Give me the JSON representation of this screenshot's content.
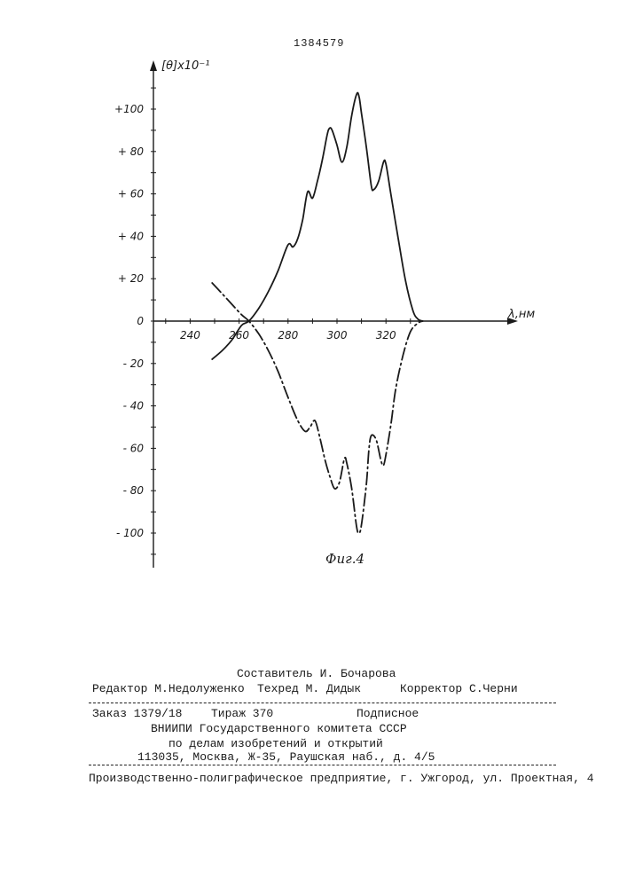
{
  "header": {
    "patent_number": "1384579"
  },
  "chart_data": {
    "type": "line",
    "figure_label": "Фиг.4",
    "ylabel": "[θ]x10⁻¹",
    "xlabel": "λ,нм",
    "xlim": [
      225,
      335
    ],
    "ylim": [
      -115,
      115
    ],
    "x_ticks": [
      {
        "value": 240,
        "label": "240"
      },
      {
        "value": 260,
        "label": "260"
      },
      {
        "value": 280,
        "label": "280"
      },
      {
        "value": 300,
        "label": "300"
      },
      {
        "value": 320,
        "label": "320"
      }
    ],
    "y_ticks": [
      {
        "value": 100,
        "label": "+100"
      },
      {
        "value": 80,
        "label": "+ 80"
      },
      {
        "value": 60,
        "label": "+ 60"
      },
      {
        "value": 40,
        "label": "+ 40"
      },
      {
        "value": 20,
        "label": "+ 20"
      },
      {
        "value": 0,
        "label": "0"
      },
      {
        "value": -20,
        "label": "- 20"
      },
      {
        "value": -40,
        "label": "- 40"
      },
      {
        "value": -60,
        "label": "- 60"
      },
      {
        "value": -80,
        "label": "- 80"
      },
      {
        "value": -100,
        "label": "- 100"
      }
    ],
    "series": [
      {
        "style": "solid",
        "points": [
          [
            249,
            -18
          ],
          [
            253,
            -14
          ],
          [
            257,
            -9
          ],
          [
            261,
            -2
          ],
          [
            264,
            0
          ],
          [
            268,
            6
          ],
          [
            272,
            14
          ],
          [
            276,
            24
          ],
          [
            280,
            36
          ],
          [
            282,
            35
          ],
          [
            284,
            39
          ],
          [
            286,
            48
          ],
          [
            288,
            61
          ],
          [
            290,
            58
          ],
          [
            292,
            66
          ],
          [
            294,
            76
          ],
          [
            296,
            88
          ],
          [
            297,
            91
          ],
          [
            298,
            90
          ],
          [
            300,
            83
          ],
          [
            302,
            75
          ],
          [
            304,
            82
          ],
          [
            306,
            97
          ],
          [
            308,
            107
          ],
          [
            309,
            106
          ],
          [
            310,
            98
          ],
          [
            312,
            82
          ],
          [
            314,
            64
          ],
          [
            315,
            62
          ],
          [
            317,
            66
          ],
          [
            319,
            75
          ],
          [
            320,
            74
          ],
          [
            322,
            60
          ],
          [
            325,
            39
          ],
          [
            328,
            19
          ],
          [
            331,
            5
          ],
          [
            333,
            1
          ],
          [
            335,
            0
          ]
        ]
      },
      {
        "style": "dash-dot",
        "points": [
          [
            249,
            18
          ],
          [
            253,
            13
          ],
          [
            257,
            8
          ],
          [
            261,
            3
          ],
          [
            264,
            0
          ],
          [
            268,
            -6
          ],
          [
            272,
            -14
          ],
          [
            276,
            -24
          ],
          [
            280,
            -36
          ],
          [
            284,
            -47
          ],
          [
            287,
            -52
          ],
          [
            289,
            -50
          ],
          [
            291,
            -47
          ],
          [
            293,
            -55
          ],
          [
            295,
            -65
          ],
          [
            297,
            -73
          ],
          [
            299,
            -79
          ],
          [
            301,
            -76
          ],
          [
            303,
            -65
          ],
          [
            304,
            -67
          ],
          [
            306,
            -79
          ],
          [
            308,
            -97
          ],
          [
            309,
            -100
          ],
          [
            310,
            -96
          ],
          [
            312,
            -77
          ],
          [
            313,
            -61
          ],
          [
            314,
            -54
          ],
          [
            316,
            -56
          ],
          [
            318,
            -66
          ],
          [
            319,
            -68
          ],
          [
            320,
            -63
          ],
          [
            322,
            -49
          ],
          [
            324,
            -32
          ],
          [
            327,
            -16
          ],
          [
            330,
            -5
          ],
          [
            333,
            -1
          ],
          [
            335,
            0
          ]
        ]
      }
    ]
  },
  "imprint": {
    "compiler": "Составитель И. Бочарова",
    "editor": "Редактор М.Недолуженко",
    "techred": "Техред М. Дидык",
    "corrector": "Корректор С.Черни",
    "order": "Заказ 1379/18",
    "circulation": "Тираж 370",
    "subscription": "Подписное",
    "org_line1": "ВНИИПИ Государственного комитета СССР",
    "org_line2": "по делам изобретений и открытий",
    "address": "113035, Москва, Ж-35, Раушская наб., д. 4/5",
    "printer": "Производственно-полиграфическое предприятие, г. Ужгород, ул. Проектная, 4"
  }
}
